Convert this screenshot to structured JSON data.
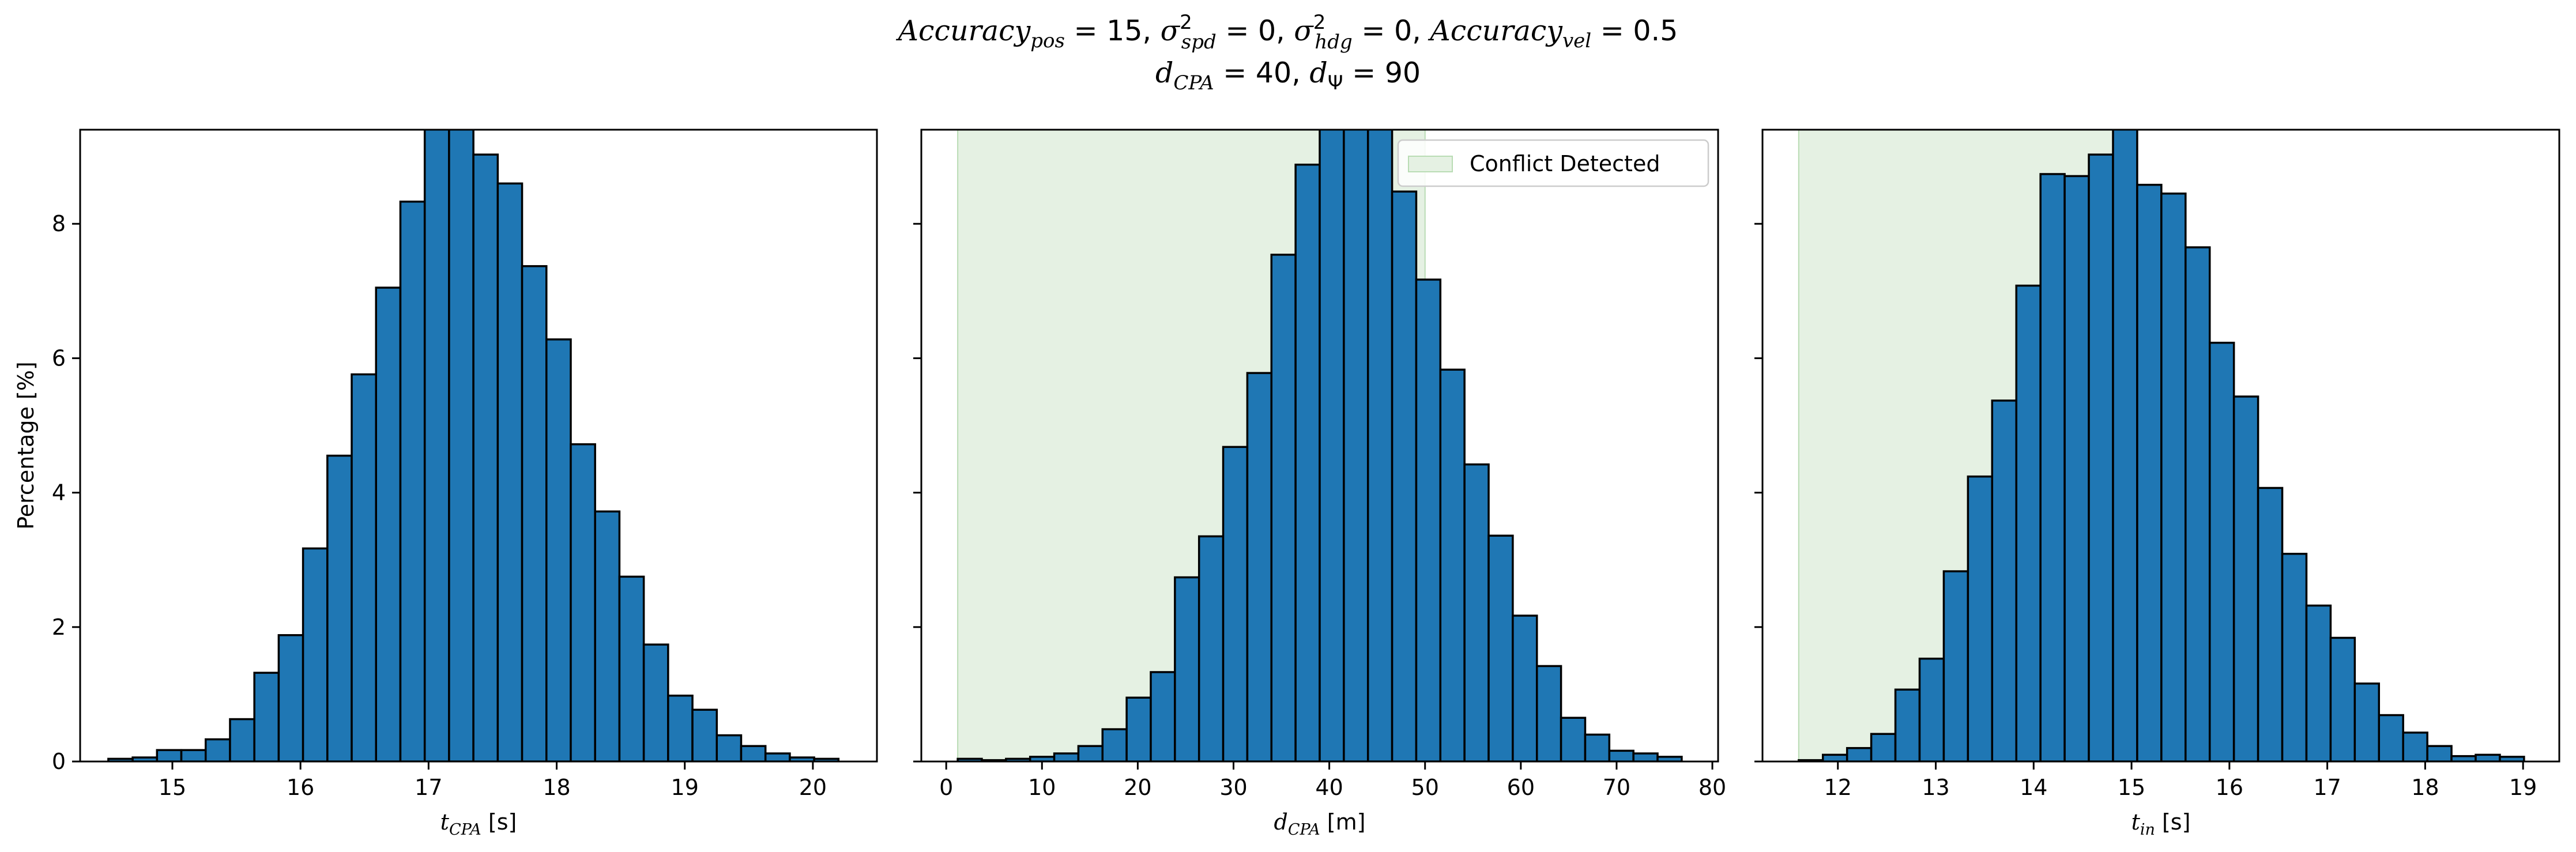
{
  "figure": {
    "title_line1": {
      "a_main": "Accuracy",
      "a_sub": "pos",
      "a_val": " = 15,  ",
      "s1_main": "σ",
      "s1_sup": "2",
      "s1_sub": "spd",
      "s1_val": " = 0,  ",
      "s2_main": "σ",
      "s2_sup": "2",
      "s2_sub": "hdg",
      "s2_val": " = 0,  ",
      "b_main": "Accuracy",
      "b_sub": "vel",
      "b_val": " = 0.5"
    },
    "title_line2": {
      "d1_main": "d",
      "d1_sub": "CPA",
      "d1_val": " = 40,  ",
      "d2_main": "d",
      "d2_sub": "Ψ",
      "d2_val": " = 90"
    },
    "colors": {
      "bar": "#1f77b4",
      "edge": "#000000",
      "conflict": "#e5f1e3",
      "conflict_edge": "#b9dcb4"
    }
  },
  "chart_data": [
    {
      "type": "bar",
      "xlabel_main": "t",
      "xlabel_sub": "CPA",
      "xlabel_unit": " [s]",
      "ylabel": "Percentage [%]",
      "xlim": [
        14.28,
        20.5
      ],
      "ylim": [
        0,
        9.4
      ],
      "xticks": [
        15,
        16,
        17,
        18,
        19,
        20
      ],
      "yticks": [
        0,
        2,
        4,
        6,
        8
      ],
      "bin_start": 14.5,
      "bin_width": 0.19,
      "values": [
        0.04,
        0.06,
        0.17,
        0.17,
        0.33,
        0.63,
        1.32,
        1.88,
        3.17,
        4.55,
        5.76,
        7.05,
        8.33,
        9.5,
        9.5,
        9.03,
        8.6,
        7.37,
        6.28,
        4.72,
        3.72,
        2.75,
        1.74,
        0.98,
        0.77,
        0.39,
        0.23,
        0.12,
        0.06,
        0.04
      ],
      "conflict": null
    },
    {
      "type": "bar",
      "xlabel_main": "d",
      "xlabel_sub": "CPA",
      "xlabel_unit": " [m]",
      "ylabel": "",
      "xlim": [
        -2.6,
        80.6
      ],
      "ylim": [
        0,
        9.4
      ],
      "xticks": [
        0,
        10,
        20,
        30,
        40,
        50,
        60,
        70,
        80
      ],
      "yticks": [
        0,
        2,
        4,
        6,
        8
      ],
      "bin_start": 1.2,
      "bin_width": 2.52,
      "values": [
        0.04,
        0.02,
        0.04,
        0.07,
        0.12,
        0.23,
        0.48,
        0.95,
        1.33,
        2.74,
        3.35,
        4.68,
        5.78,
        7.54,
        8.88,
        9.5,
        9.5,
        9.5,
        8.48,
        7.17,
        5.83,
        4.42,
        3.36,
        2.17,
        1.42,
        0.65,
        0.4,
        0.16,
        0.12,
        0.07
      ],
      "conflict": {
        "label": "Conflict Detected",
        "x0": 1.2,
        "x1": 50
      }
    },
    {
      "type": "bar",
      "xlabel_main": "t",
      "xlabel_sub": "in",
      "xlabel_unit": " [s]",
      "ylabel": "",
      "xlim": [
        11.23,
        19.37
      ],
      "ylim": [
        0,
        9.4
      ],
      "xticks": [
        12,
        13,
        14,
        15,
        16,
        17,
        18,
        19
      ],
      "yticks": [
        0,
        2,
        4,
        6,
        8
      ],
      "bin_start": 11.6,
      "bin_width": 0.247,
      "values": [
        0.02,
        0.1,
        0.2,
        0.41,
        1.07,
        1.53,
        2.83,
        4.24,
        5.37,
        7.08,
        8.74,
        8.71,
        9.03,
        9.5,
        8.58,
        8.45,
        7.65,
        6.23,
        5.43,
        4.07,
        3.09,
        2.32,
        1.84,
        1.16,
        0.69,
        0.43,
        0.23,
        0.08,
        0.1,
        0.07
      ],
      "conflict": {
        "x0": 11.6,
        "x1": 15.0
      }
    }
  ]
}
